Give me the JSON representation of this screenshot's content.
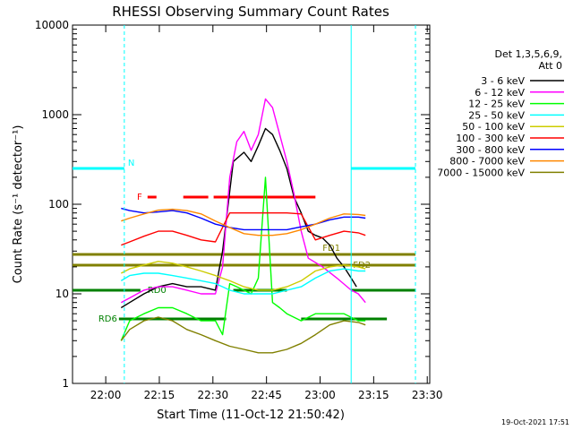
{
  "chart_data": {
    "type": "line",
    "title": "RHESSI Observing Summary Count Rates",
    "xlabel": "Start Time (11-Oct-12 21:50:42)",
    "ylabel": "Count Rate (s⁻¹ detector⁻¹)",
    "x_range_minutes_from_start": [
      0,
      100
    ],
    "yscale": "log",
    "ylim": [
      1,
      10000
    ],
    "x_ticks": [
      {
        "label": "22:00",
        "t": 9.3
      },
      {
        "label": "22:15",
        "t": 24.3
      },
      {
        "label": "22:30",
        "t": 39.3
      },
      {
        "label": "22:45",
        "t": 54.3
      },
      {
        "label": "23:00",
        "t": 69.3
      },
      {
        "label": "23:15",
        "t": 84.3
      },
      {
        "label": "23:30",
        "t": 99.3
      }
    ],
    "y_ticks": [
      {
        "label": "1",
        "v": 1
      },
      {
        "label": "10",
        "v": 10
      },
      {
        "label": "100",
        "v": 100
      },
      {
        "label": "1000",
        "v": 1000
      },
      {
        "label": "10000",
        "v": 10000
      }
    ],
    "legend_header": [
      "Det 1,3,5,6,9,",
      "Att 0"
    ],
    "legend_position": "right",
    "series": [
      {
        "name": "3 - 6 keV",
        "color": "#000000",
        "points": [
          [
            13.6,
            7
          ],
          [
            16,
            8
          ],
          [
            20,
            10
          ],
          [
            24,
            12
          ],
          [
            28,
            13
          ],
          [
            32,
            12
          ],
          [
            36,
            12
          ],
          [
            40,
            11
          ],
          [
            42,
            30
          ],
          [
            45,
            300
          ],
          [
            48,
            380
          ],
          [
            50,
            300
          ],
          [
            52,
            450
          ],
          [
            54,
            700
          ],
          [
            56,
            600
          ],
          [
            58,
            400
          ],
          [
            60,
            250
          ],
          [
            62,
            120
          ],
          [
            64,
            80
          ],
          [
            66,
            50
          ],
          [
            68,
            45
          ],
          [
            70,
            42
          ],
          [
            72,
            35
          ],
          [
            74,
            25
          ],
          [
            76,
            20
          ],
          [
            78,
            15
          ],
          [
            79.5,
            12
          ]
        ]
      },
      {
        "name": "6 - 12 keV",
        "color": "#ff00ff",
        "points": [
          [
            13.6,
            8
          ],
          [
            16,
            9
          ],
          [
            20,
            11
          ],
          [
            24,
            12
          ],
          [
            28,
            12
          ],
          [
            32,
            11
          ],
          [
            36,
            10
          ],
          [
            40,
            10
          ],
          [
            42,
            20
          ],
          [
            44,
            200
          ],
          [
            46,
            500
          ],
          [
            48,
            650
          ],
          [
            50,
            400
          ],
          [
            52,
            600
          ],
          [
            54,
            1500
          ],
          [
            56,
            1200
          ],
          [
            58,
            600
          ],
          [
            60,
            300
          ],
          [
            62,
            130
          ],
          [
            64,
            50
          ],
          [
            66,
            25
          ],
          [
            70,
            20
          ],
          [
            74,
            15
          ],
          [
            78,
            11
          ],
          [
            80,
            10
          ],
          [
            82,
            8
          ]
        ]
      },
      {
        "name": "12 - 25 keV",
        "color": "#00ff00",
        "points": [
          [
            13.6,
            3
          ],
          [
            16,
            5
          ],
          [
            20,
            6
          ],
          [
            24,
            7
          ],
          [
            28,
            7
          ],
          [
            32,
            6
          ],
          [
            36,
            5
          ],
          [
            40,
            5
          ],
          [
            42,
            3.5
          ],
          [
            44,
            13
          ],
          [
            46,
            12
          ],
          [
            48,
            11
          ],
          [
            50,
            10
          ],
          [
            52,
            15
          ],
          [
            54,
            200
          ],
          [
            56,
            8
          ],
          [
            58,
            7
          ],
          [
            60,
            6
          ],
          [
            64,
            5
          ],
          [
            68,
            6
          ],
          [
            72,
            6
          ],
          [
            76,
            6
          ],
          [
            80,
            5
          ],
          [
            82,
            5
          ]
        ]
      },
      {
        "name": "25 - 50 keV",
        "color": "#00ffff",
        "points": [
          [
            13.6,
            14
          ],
          [
            16,
            16
          ],
          [
            20,
            17
          ],
          [
            24,
            17
          ],
          [
            28,
            16
          ],
          [
            32,
            15
          ],
          [
            36,
            14
          ],
          [
            40,
            13
          ],
          [
            42,
            12
          ],
          [
            44,
            11
          ],
          [
            48,
            10
          ],
          [
            52,
            10
          ],
          [
            56,
            10
          ],
          [
            60,
            11
          ],
          [
            64,
            12
          ],
          [
            68,
            15
          ],
          [
            72,
            18
          ],
          [
            76,
            19
          ],
          [
            80,
            18
          ],
          [
            82,
            18
          ]
        ]
      },
      {
        "name": "50 - 100 keV",
        "color": "#cccc00",
        "points": [
          [
            13.6,
            17
          ],
          [
            16,
            19
          ],
          [
            20,
            21
          ],
          [
            24,
            23
          ],
          [
            28,
            22
          ],
          [
            32,
            20
          ],
          [
            36,
            18
          ],
          [
            40,
            16
          ],
          [
            44,
            14
          ],
          [
            48,
            12
          ],
          [
            52,
            11
          ],
          [
            56,
            11
          ],
          [
            60,
            12
          ],
          [
            64,
            14
          ],
          [
            68,
            18
          ],
          [
            72,
            20
          ],
          [
            76,
            21
          ],
          [
            80,
            20
          ],
          [
            82,
            19
          ]
        ]
      },
      {
        "name": "100 - 300 keV",
        "color": "#ff0000",
        "points": [
          [
            13.6,
            35
          ],
          [
            16,
            38
          ],
          [
            20,
            44
          ],
          [
            24,
            50
          ],
          [
            28,
            50
          ],
          [
            32,
            45
          ],
          [
            36,
            40
          ],
          [
            40,
            38
          ],
          [
            44,
            80
          ],
          [
            48,
            80
          ],
          [
            52,
            80
          ],
          [
            56,
            80
          ],
          [
            60,
            80
          ],
          [
            64,
            78
          ],
          [
            68,
            40
          ],
          [
            72,
            45
          ],
          [
            76,
            50
          ],
          [
            80,
            48
          ],
          [
            82,
            45
          ]
        ]
      },
      {
        "name": "300 - 800 keV",
        "color": "#0000ff",
        "points": [
          [
            13.6,
            90
          ],
          [
            16,
            85
          ],
          [
            20,
            80
          ],
          [
            24,
            82
          ],
          [
            28,
            85
          ],
          [
            32,
            80
          ],
          [
            36,
            70
          ],
          [
            40,
            60
          ],
          [
            44,
            55
          ],
          [
            48,
            52
          ],
          [
            52,
            52
          ],
          [
            56,
            52
          ],
          [
            60,
            52
          ],
          [
            64,
            56
          ],
          [
            68,
            60
          ],
          [
            72,
            67
          ],
          [
            76,
            72
          ],
          [
            80,
            72
          ],
          [
            82,
            70
          ]
        ]
      },
      {
        "name": "800 - 7000 keV",
        "color": "#ff8800",
        "points": [
          [
            13.6,
            65
          ],
          [
            16,
            70
          ],
          [
            20,
            78
          ],
          [
            24,
            86
          ],
          [
            28,
            88
          ],
          [
            32,
            85
          ],
          [
            36,
            78
          ],
          [
            40,
            65
          ],
          [
            44,
            55
          ],
          [
            48,
            47
          ],
          [
            52,
            45
          ],
          [
            56,
            45
          ],
          [
            60,
            47
          ],
          [
            64,
            52
          ],
          [
            68,
            60
          ],
          [
            72,
            70
          ],
          [
            76,
            78
          ],
          [
            80,
            77
          ],
          [
            82,
            75
          ]
        ]
      },
      {
        "name": "7000 - 15000 keV",
        "color": "#808000",
        "points": [
          [
            13.6,
            3
          ],
          [
            16,
            4
          ],
          [
            20,
            5
          ],
          [
            24,
            5.5
          ],
          [
            28,
            5
          ],
          [
            32,
            4
          ],
          [
            36,
            3.5
          ],
          [
            40,
            3
          ],
          [
            44,
            2.6
          ],
          [
            48,
            2.4
          ],
          [
            52,
            2.2
          ],
          [
            56,
            2.2
          ],
          [
            60,
            2.4
          ],
          [
            64,
            2.8
          ],
          [
            68,
            3.5
          ],
          [
            72,
            4.5
          ],
          [
            76,
            5
          ],
          [
            80,
            4.8
          ],
          [
            82,
            4.5
          ]
        ]
      }
    ],
    "flag_bars": [
      {
        "label": "N",
        "color": "#00ffff",
        "y": 40,
        "segments": [
          [
            0,
            14.5
          ],
          [
            78,
            96
          ]
        ]
      },
      {
        "label": "F",
        "color": "#ff0000",
        "y": 48,
        "segments": [
          [
            21,
            23.5
          ],
          [
            31,
            38
          ],
          [
            39.5,
            68
          ]
        ]
      },
      {
        "label": "FD1",
        "color": "#808000",
        "y": 64,
        "segments": [
          [
            0,
            96
          ]
        ]
      },
      {
        "label": "FD2",
        "color": "#808000",
        "y": 67,
        "segments": [
          [
            0,
            96
          ]
        ]
      },
      {
        "label": "RD0",
        "color": "#008000",
        "y": 74,
        "segments": [
          [
            0,
            19
          ],
          [
            45,
            60
          ],
          [
            78,
            96
          ]
        ]
      },
      {
        "label": "RD6",
        "color": "#008000",
        "y": 82,
        "segments": [
          [
            13,
            43
          ],
          [
            64,
            88
          ]
        ]
      }
    ],
    "vertical_markers": [
      {
        "t": 14.5,
        "color": "#00ffff",
        "style": "dashed"
      },
      {
        "t": 96,
        "color": "#00ffff",
        "style": "dashed"
      },
      {
        "t": 78,
        "color": "#00ffff",
        "style": "solid"
      }
    ]
  },
  "footer_timestamp": "19-Oct-2021 17:51"
}
